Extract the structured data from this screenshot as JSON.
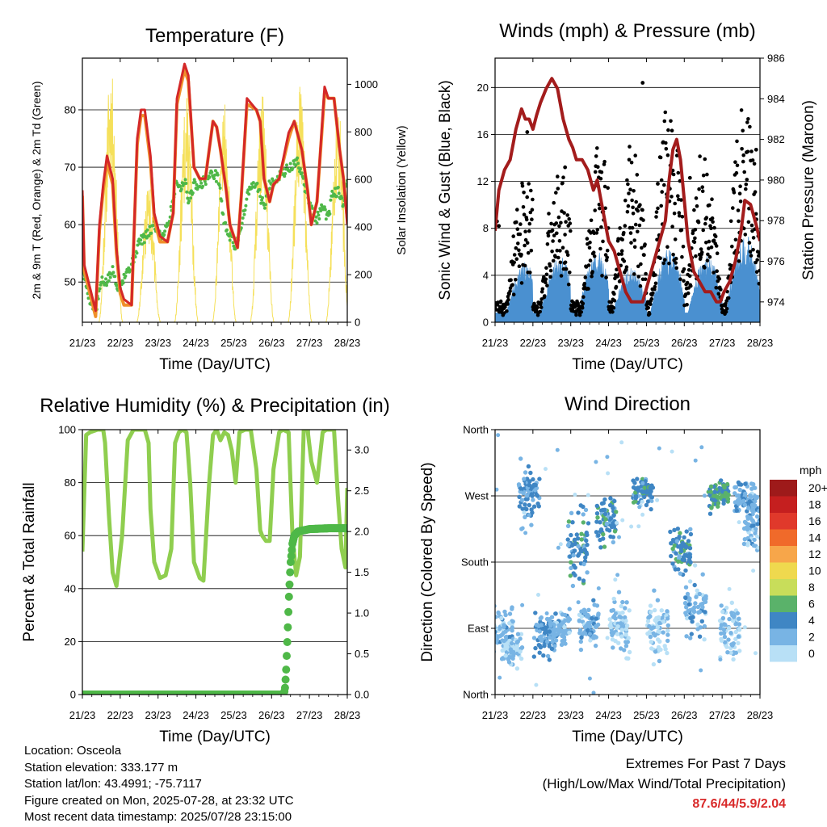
{
  "info": {
    "location": "Location: Osceola",
    "elevation": "Station elevation: 333.177 m",
    "latlon": "Station lat/lon: 43.4991; -75.7117",
    "created": "Figure created on Mon, 2025-07-28, at 23:32 UTC",
    "latest": "Most recent data timestamp: 2025/07/28 23:15:00"
  },
  "extremes": {
    "title": "Extremes For Past 7 Days",
    "subtitle": "(High/Low/Max Wind/Total Precipitation)",
    "value": "87.6/44/5.9/2.04"
  },
  "colors": {
    "temp_2m": "#d42828",
    "temp_9m": "#f0902a",
    "dewpoint": "#4fb848",
    "solar": "#f5e05a",
    "gust": "#000000",
    "wind": "#4a90d0",
    "pressure": "#a31c1c",
    "rh": "#8fce4f",
    "precip": "#4fb848"
  },
  "chart_data": [
    {
      "type": "line",
      "title": "Temperature (F)",
      "xlabel": "Time (Day/UTC)",
      "ylabel": "2m & 9m T (Red, Orange) & 2m Td (Green)",
      "y2label": "Solar Insolation (Yellow)",
      "x_ticks": [
        "21/23",
        "22/23",
        "23/23",
        "24/23",
        "25/23",
        "26/23",
        "27/23",
        "28/23"
      ],
      "xlim": [
        0,
        7
      ],
      "ylim": [
        43,
        89
      ],
      "y_ticks": [
        50,
        60,
        70,
        80
      ],
      "y2lim": [
        0,
        1110
      ],
      "y2_ticks": [
        0,
        200,
        400,
        600,
        800,
        1000
      ],
      "grid": "horizontal",
      "series": [
        {
          "name": "2m T",
          "color_key": "temp_2m",
          "x": [
            0,
            0.05,
            0.2,
            0.35,
            0.45,
            0.55,
            0.65,
            0.8,
            0.9,
            1.0,
            1.1,
            1.3,
            1.45,
            1.55,
            1.65,
            1.8,
            1.9,
            2.05,
            2.25,
            2.4,
            2.5,
            2.7,
            2.8,
            2.95,
            3.1,
            3.25,
            3.45,
            3.55,
            3.65,
            3.8,
            3.9,
            4.1,
            4.2,
            4.35,
            4.6,
            4.7,
            4.8,
            4.95,
            5.05,
            5.2,
            5.45,
            5.6,
            5.8,
            5.95,
            6.05,
            6.2,
            6.4,
            6.5,
            6.65,
            6.8,
            6.9,
            7.0
          ],
          "y": [
            66,
            53,
            49,
            45,
            60,
            67,
            72,
            68,
            56,
            49,
            47,
            46,
            75,
            80,
            80,
            72,
            62,
            58,
            57,
            62,
            82,
            88,
            86,
            70,
            68,
            68,
            78,
            77,
            73,
            66,
            60,
            56,
            65,
            82,
            80,
            78,
            68,
            64,
            67,
            68,
            76,
            78,
            73,
            66,
            60,
            64,
            84,
            82,
            82,
            73,
            68,
            60
          ]
        },
        {
          "name": "9m T",
          "color_key": "temp_9m",
          "x": [
            0,
            0.05,
            0.2,
            0.35,
            0.45,
            0.55,
            0.65,
            0.8,
            0.9,
            1.0,
            1.1,
            1.3,
            1.45,
            1.55,
            1.65,
            1.8,
            1.9,
            2.05,
            2.25,
            2.4,
            2.5,
            2.7,
            2.8,
            2.95,
            3.1,
            3.25,
            3.45,
            3.55,
            3.65,
            3.8,
            3.9,
            4.1,
            4.2,
            4.35,
            4.6,
            4.7,
            4.8,
            4.95,
            5.05,
            5.2,
            5.45,
            5.6,
            5.8,
            5.95,
            6.05,
            6.2,
            6.4,
            6.5,
            6.65,
            6.8,
            6.9,
            7.0
          ],
          "y": [
            65,
            52,
            48,
            44,
            59,
            66,
            71,
            67,
            55,
            48,
            46,
            46,
            74,
            79,
            79,
            71,
            61,
            57,
            57,
            62,
            81,
            87,
            85,
            70,
            68,
            68,
            78,
            77,
            73,
            66,
            60,
            56,
            65,
            81,
            80,
            78,
            68,
            64,
            67,
            68,
            75,
            78,
            73,
            66,
            60,
            64,
            83,
            82,
            82,
            73,
            68,
            61
          ]
        },
        {
          "name": "2m Td",
          "color_key": "dewpoint",
          "x": [
            0,
            0.2,
            0.35,
            0.5,
            0.65,
            0.8,
            0.95,
            1.1,
            1.3,
            1.5,
            1.7,
            1.9,
            2.1,
            2.3,
            2.5,
            2.6,
            2.7,
            2.8,
            2.95,
            3.1,
            3.3,
            3.45,
            3.6,
            3.75,
            3.9,
            4.05,
            4.2,
            4.4,
            4.6,
            4.8,
            4.95,
            5.1,
            5.3,
            5.5,
            5.7,
            5.9,
            6.1,
            6.2,
            6.35,
            6.5,
            6.6,
            6.75,
            6.9,
            7.0
          ],
          "y": [
            52,
            47,
            45,
            50,
            50,
            52,
            49,
            51,
            53,
            57,
            58,
            60,
            58,
            61,
            68,
            66,
            68,
            64,
            67,
            67,
            68,
            69,
            68,
            60,
            58,
            56,
            60,
            66,
            67,
            63,
            67,
            68,
            69,
            70,
            71,
            66,
            62,
            61,
            63,
            61,
            65,
            66,
            63,
            68
          ]
        },
        {
          "name": "Solar Insolation",
          "color_key": "solar",
          "axis": "y2",
          "style": "diurnal",
          "peaks": [
            [
              0.75,
              1080
            ],
            [
              1.75,
              600
            ],
            [
              2.75,
              960
            ],
            [
              3.75,
              950
            ],
            [
              4.75,
              980
            ],
            [
              5.75,
              1010
            ],
            [
              6.75,
              940
            ]
          ]
        }
      ]
    },
    {
      "type": "scatter",
      "title": "Winds (mph) & Pressure (mb)",
      "xlabel": "Time (Day/UTC)",
      "ylabel": "Sonic Wind & Gust (Blue, Black)",
      "y2label": "Station Pressure (Maroon)",
      "x_ticks": [
        "21/23",
        "22/23",
        "23/23",
        "24/23",
        "25/23",
        "26/23",
        "27/23",
        "28/23"
      ],
      "xlim": [
        0,
        7
      ],
      "ylim": [
        0,
        22.5
      ],
      "y_ticks": [
        0,
        4,
        8,
        12,
        16,
        20
      ],
      "y2lim": [
        973,
        986
      ],
      "y2_ticks": [
        974,
        976,
        978,
        980,
        982,
        984,
        986
      ],
      "grid": "horizontal",
      "series": [
        {
          "name": "Gust",
          "color_key": "gust",
          "style": "diurnal-scatter",
          "peaks": [
            [
              0.8,
              10
            ],
            [
              1.7,
              11
            ],
            [
              2.8,
              13
            ],
            [
              3.6,
              13
            ],
            [
              4.6,
              16
            ],
            [
              5.5,
              12
            ],
            [
              6.6,
              16
            ]
          ],
          "outliers": [
            [
              0.05,
              8.6
            ],
            [
              0.1,
              8.2
            ],
            [
              0.85,
              16.2
            ],
            [
              1.85,
              13.2
            ],
            [
              3.9,
              20.4
            ],
            [
              4.3,
              11.8
            ],
            [
              6.9,
              14.7
            ],
            [
              5.15,
              12.3
            ]
          ]
        },
        {
          "name": "Wind",
          "color_key": "wind",
          "style": "diurnal-fill",
          "peaks": [
            [
              0.8,
              4
            ],
            [
              1.7,
              4.5
            ],
            [
              2.7,
              4.8
            ],
            [
              3.6,
              3.5
            ],
            [
              4.6,
              5
            ],
            [
              5.6,
              4.5
            ],
            [
              6.6,
              6.2
            ]
          ]
        },
        {
          "name": "Pressure",
          "color_key": "pressure",
          "axis": "y2",
          "x": [
            0,
            0.1,
            0.25,
            0.4,
            0.55,
            0.7,
            0.8,
            0.9,
            1.0,
            1.1,
            1.2,
            1.35,
            1.5,
            1.65,
            1.8,
            1.95,
            2.05,
            2.15,
            2.3,
            2.45,
            2.6,
            2.7,
            2.8,
            2.9,
            3.0,
            3.15,
            3.3,
            3.45,
            3.6,
            3.75,
            3.9,
            4.05,
            4.2,
            4.35,
            4.5,
            4.6,
            4.7,
            4.8,
            4.9,
            5.0,
            5.1,
            5.25,
            5.4,
            5.55,
            5.7,
            5.85,
            5.95,
            6.05,
            6.2,
            6.35,
            6.5,
            6.6,
            6.75,
            6.9,
            7.0
          ],
          "x_label": "",
          "y": [
            977.5,
            979.5,
            980.5,
            981,
            982.5,
            983.5,
            983,
            983,
            982.5,
            983.2,
            983.8,
            984.5,
            985,
            984.5,
            983,
            982,
            981.6,
            981,
            981,
            980.5,
            979.5,
            980,
            979,
            978,
            977,
            976.5,
            975.5,
            974.5,
            974,
            974,
            974,
            975,
            976,
            977,
            978,
            980,
            981.5,
            982,
            981,
            979,
            977,
            975.5,
            975,
            974.5,
            974.5,
            974,
            974,
            974.5,
            975,
            976,
            977.5,
            979,
            978.8,
            977.8,
            977
          ]
        }
      ]
    },
    {
      "type": "line",
      "title": "Relative Humidity (%) & Precipitation (in)",
      "xlabel": "Time (Day/UTC)",
      "ylabel": "Percent & Total Rainfall",
      "x_ticks": [
        "21/23",
        "22/23",
        "23/23",
        "24/23",
        "25/23",
        "26/23",
        "27/23",
        "28/23"
      ],
      "xlim": [
        0,
        7
      ],
      "ylim": [
        0,
        100
      ],
      "y_ticks": [
        0,
        20,
        40,
        60,
        80,
        100
      ],
      "y2lim": [
        0,
        3.25
      ],
      "y2_ticks": [
        "0.0",
        "0.5",
        "1.0",
        "1.5",
        "2.0",
        "2.5",
        "3.0"
      ],
      "grid": "horizontal",
      "series": [
        {
          "name": "RH",
          "color_key": "rh",
          "x": [
            0,
            0.1,
            0.2,
            0.4,
            0.55,
            0.6,
            0.7,
            0.8,
            0.9,
            1.05,
            1.2,
            1.35,
            1.5,
            1.65,
            1.75,
            1.8,
            1.9,
            2.05,
            2.2,
            2.35,
            2.45,
            2.55,
            2.65,
            2.75,
            2.85,
            2.95,
            3.1,
            3.2,
            3.35,
            3.45,
            3.55,
            3.65,
            3.75,
            3.85,
            3.95,
            4.05,
            4.15,
            4.3,
            4.45,
            4.6,
            4.7,
            4.75,
            4.85,
            4.95,
            5.05,
            5.2,
            5.3,
            5.45,
            5.55,
            5.65,
            5.75,
            5.85,
            5.95,
            6.05,
            6.2,
            6.35,
            6.45,
            6.55,
            6.65,
            6.75,
            6.85,
            6.95,
            7.0
          ],
          "y": [
            54,
            98,
            99,
            100,
            100,
            95,
            68,
            46,
            41,
            60,
            96,
            100,
            100,
            100,
            95,
            70,
            50,
            44,
            45,
            55,
            95,
            99,
            100,
            99,
            80,
            50,
            44,
            43,
            80,
            98,
            100,
            96,
            99,
            98,
            92,
            80,
            99,
            100,
            100,
            85,
            62,
            60,
            58,
            58,
            85,
            99,
            100,
            99,
            60,
            45,
            52,
            100,
            100,
            88,
            80,
            99,
            100,
            100,
            100,
            75,
            55,
            48,
            78
          ]
        },
        {
          "name": "Total Rainfall",
          "color_key": "precip",
          "axis": "y2",
          "x": [
            0,
            5.3,
            5.35,
            5.38,
            5.42,
            5.46,
            5.5,
            5.55,
            5.6,
            5.7,
            6.0,
            6.5,
            7.0
          ],
          "y": [
            0,
            0,
            0.05,
            0.25,
            0.7,
            1.2,
            1.6,
            1.85,
            1.95,
            2.0,
            2.03,
            2.04,
            2.04
          ]
        }
      ]
    },
    {
      "type": "scatter",
      "title": "Wind Direction",
      "xlabel": "Time (Day/UTC)",
      "ylabel": "Direction (Colored By Speed)",
      "x_ticks": [
        "21/23",
        "22/23",
        "23/23",
        "24/23",
        "25/23",
        "26/23",
        "27/23",
        "28/23"
      ],
      "xlim": [
        0,
        7
      ],
      "ylim": [
        0,
        360
      ],
      "y_ticks": [
        "North",
        "East",
        "South",
        "West",
        "North"
      ],
      "grid": "horizontal",
      "colorbar": {
        "title": "mph",
        "labels": [
          "20+",
          "18",
          "16",
          "14",
          "12",
          "10",
          "8",
          "6",
          "4",
          "2",
          "0"
        ],
        "colors": [
          "#9e1a1a",
          "#c51f1f",
          "#e0392b",
          "#f06a2a",
          "#f7a64a",
          "#efd94e",
          "#c8dd5a",
          "#5ab26a",
          "#3f86c4",
          "#78b4e4",
          "#b8e0f6"
        ]
      },
      "series": [
        {
          "name": "Direction",
          "style": "clusters",
          "clusters": [
            [
              0.2,
              90,
              18,
              2
            ],
            [
              0.45,
              60,
              12,
              1
            ],
            [
              0.9,
              275,
              25,
              3
            ],
            [
              1.3,
              80,
              15,
              3
            ],
            [
              1.7,
              90,
              15,
              2
            ],
            [
              2.2,
              200,
              30,
              4
            ],
            [
              2.5,
              95,
              18,
              2
            ],
            [
              2.95,
              235,
              22,
              4
            ],
            [
              3.3,
              95,
              25,
              1
            ],
            [
              3.9,
              275,
              10,
              4
            ],
            [
              4.3,
              90,
              25,
              1
            ],
            [
              4.9,
              195,
              20,
              4
            ],
            [
              5.3,
              120,
              25,
              2
            ],
            [
              5.9,
              270,
              12,
              5
            ],
            [
              6.2,
              90,
              25,
              1
            ],
            [
              6.6,
              265,
              15,
              3
            ],
            [
              6.85,
              230,
              25,
              2
            ]
          ]
        }
      ]
    }
  ]
}
